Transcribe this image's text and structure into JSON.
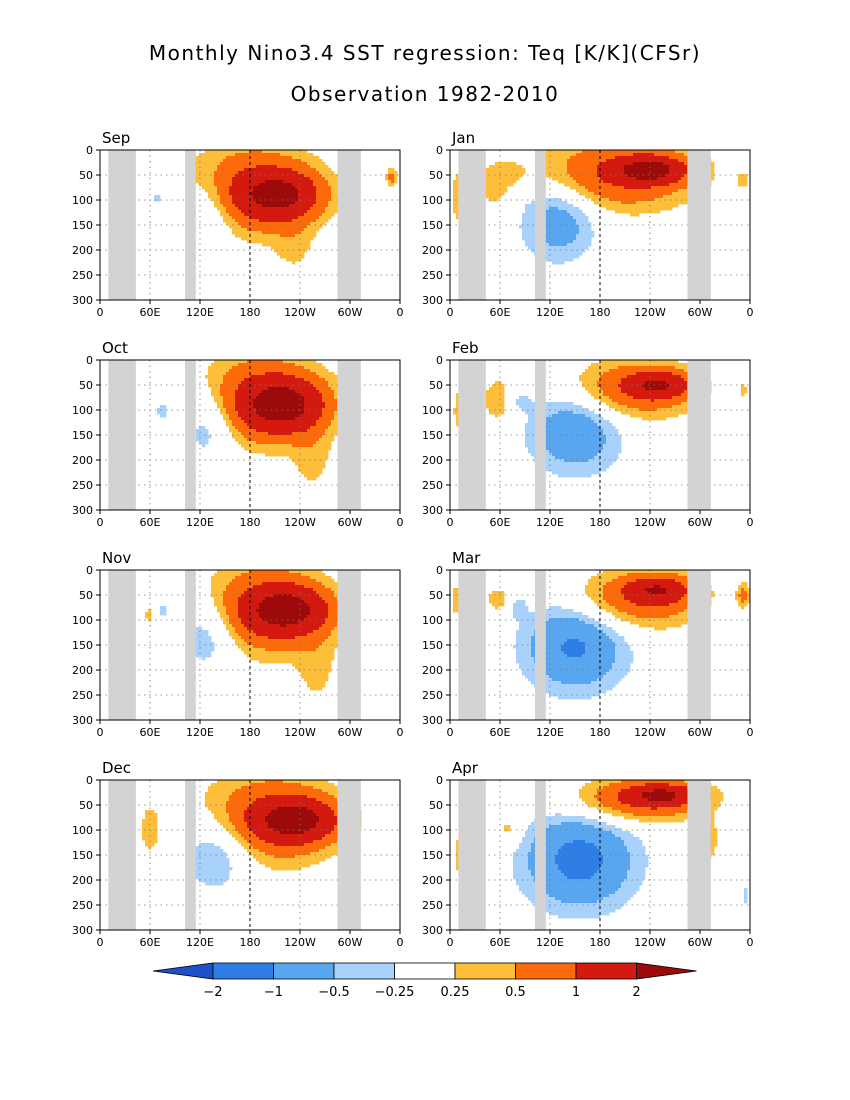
{
  "title_line1": "Monthly Nino3.4 SST regression: Teq [K/K](CFSr)",
  "title_line2": "Observation 1982-2010",
  "chart_data": {
    "type": "heatmap",
    "x_tick_labels": [
      "0",
      "60E",
      "120E",
      "180",
      "120W",
      "60W",
      "0"
    ],
    "x_ticks_deg": [
      0,
      60,
      120,
      180,
      240,
      300,
      360
    ],
    "xlim_deg": [
      0,
      360
    ],
    "y_tick_labels": [
      "0",
      "50",
      "100",
      "150",
      "200",
      "250",
      "300"
    ],
    "y_ticks": [
      0,
      50,
      100,
      150,
      200,
      250,
      300
    ],
    "ylim": [
      300,
      0
    ],
    "grid": true,
    "reference_line_deg": 180,
    "land_mask_bands_deg": [
      [
        10,
        43
      ],
      [
        102,
        115
      ],
      [
        285,
        313
      ]
    ],
    "contour_levels": [
      -2,
      -1,
      -0.5,
      -0.25,
      0.25,
      0.5,
      1,
      2
    ],
    "level_colors": [
      "#1e50c8",
      "#2f7ee6",
      "#59a6f0",
      "#a8d2fb",
      "#ffffff",
      "#fdbf3a",
      "#fd6a0a",
      "#d4190e",
      "#9c0a0a"
    ],
    "colorbar_labels": [
      "-2",
      "-1",
      "-0.5",
      "-0.25",
      "0.25",
      "0.5",
      "1",
      "2"
    ],
    "panels": [
      {
        "month": "Sep",
        "features": [
          {
            "lon": 180,
            "depth": 80,
            "rlon": 80,
            "rdep": 90,
            "amp": 1.0
          },
          {
            "lon": 215,
            "depth": 90,
            "rlon": 45,
            "rdep": 45,
            "amp": 1.8
          },
          {
            "lon": 233,
            "depth": 195,
            "rlon": 25,
            "rdep": 65,
            "amp": 0.25
          },
          {
            "lon": 130,
            "depth": 120,
            "rlon": 32,
            "rdep": 75,
            "amp": -0.55
          },
          {
            "lon": 70,
            "depth": 95,
            "rlon": 15,
            "rdep": 25,
            "amp": -0.4
          },
          {
            "lon": 14,
            "depth": 150,
            "rlon": 6,
            "rdep": 50,
            "amp": 0.25
          },
          {
            "lon": 350,
            "depth": 55,
            "rlon": 7,
            "rdep": 20,
            "amp": 0.6
          }
        ]
      },
      {
        "month": "Jan",
        "features": [
          {
            "lon": 200,
            "depth": 50,
            "rlon": 95,
            "rdep": 70,
            "amp": 1.0
          },
          {
            "lon": 240,
            "depth": 40,
            "rlon": 40,
            "rdep": 25,
            "amp": 2.0
          },
          {
            "lon": 130,
            "depth": 140,
            "rlon": 45,
            "rdep": 80,
            "amp": -0.8
          },
          {
            "lon": 60,
            "depth": 70,
            "rlon": 25,
            "rdep": 45,
            "amp": 0.45
          },
          {
            "lon": 78,
            "depth": 90,
            "rlon": 16,
            "rdep": 25,
            "amp": -0.35
          },
          {
            "lon": 10,
            "depth": 95,
            "rlon": 10,
            "rdep": 60,
            "amp": 0.4
          },
          {
            "lon": 352,
            "depth": 60,
            "rlon": 8,
            "rdep": 20,
            "amp": 0.3
          }
        ]
      },
      {
        "month": "Oct",
        "features": [
          {
            "lon": 185,
            "depth": 80,
            "rlon": 80,
            "rdep": 90,
            "amp": 1.0
          },
          {
            "lon": 220,
            "depth": 90,
            "rlon": 45,
            "rdep": 50,
            "amp": 2.0
          },
          {
            "lon": 255,
            "depth": 200,
            "rlon": 25,
            "rdep": 80,
            "amp": 0.3
          },
          {
            "lon": 130,
            "depth": 120,
            "rlon": 35,
            "rdep": 80,
            "amp": -0.7
          },
          {
            "lon": 75,
            "depth": 100,
            "rlon": 14,
            "rdep": 30,
            "amp": -0.4
          },
          {
            "lon": 12,
            "depth": 100,
            "rlon": 6,
            "rdep": 30,
            "amp": 0.3
          }
        ]
      },
      {
        "month": "Feb",
        "features": [
          {
            "lon": 215,
            "depth": 60,
            "rlon": 80,
            "rdep": 60,
            "amp": 0.9
          },
          {
            "lon": 250,
            "depth": 50,
            "rlon": 35,
            "rdep": 25,
            "amp": 1.6
          },
          {
            "lon": 150,
            "depth": 140,
            "rlon": 55,
            "rdep": 85,
            "amp": -0.9
          },
          {
            "lon": 60,
            "depth": 80,
            "rlon": 22,
            "rdep": 45,
            "amp": 0.5
          },
          {
            "lon": 80,
            "depth": 80,
            "rlon": 18,
            "rdep": 25,
            "amp": -0.4
          },
          {
            "lon": 10,
            "depth": 100,
            "rlon": 8,
            "rdep": 60,
            "amp": 0.35
          },
          {
            "lon": 352,
            "depth": 60,
            "rlon": 6,
            "rdep": 20,
            "amp": 0.3
          }
        ]
      },
      {
        "month": "Nov",
        "features": [
          {
            "lon": 190,
            "depth": 80,
            "rlon": 80,
            "rdep": 90,
            "amp": 1.0
          },
          {
            "lon": 225,
            "depth": 80,
            "rlon": 45,
            "rdep": 45,
            "amp": 2.0
          },
          {
            "lon": 260,
            "depth": 200,
            "rlon": 25,
            "rdep": 80,
            "amp": 0.3
          },
          {
            "lon": 130,
            "depth": 120,
            "rlon": 38,
            "rdep": 80,
            "amp": -0.7
          },
          {
            "lon": 75,
            "depth": 80,
            "rlon": 14,
            "rdep": 30,
            "amp": -0.35
          },
          {
            "lon": 60,
            "depth": 90,
            "rlon": 8,
            "rdep": 25,
            "amp": 0.35
          },
          {
            "lon": 12,
            "depth": 100,
            "rlon": 6,
            "rdep": 30,
            "amp": 0.3
          }
        ]
      },
      {
        "month": "Mar",
        "features": [
          {
            "lon": 220,
            "depth": 60,
            "rlon": 80,
            "rdep": 60,
            "amp": 0.9
          },
          {
            "lon": 250,
            "depth": 40,
            "rlon": 35,
            "rdep": 25,
            "amp": 1.5
          },
          {
            "lon": 150,
            "depth": 150,
            "rlon": 60,
            "rdep": 90,
            "amp": -1.1
          },
          {
            "lon": 60,
            "depth": 60,
            "rlon": 20,
            "rdep": 30,
            "amp": 0.4
          },
          {
            "lon": 80,
            "depth": 70,
            "rlon": 12,
            "rdep": 25,
            "amp": -0.4
          },
          {
            "lon": 8,
            "depth": 60,
            "rlon": 8,
            "rdep": 35,
            "amp": 0.4
          },
          {
            "lon": 352,
            "depth": 50,
            "rlon": 8,
            "rdep": 25,
            "amp": 0.6
          }
        ]
      },
      {
        "month": "Dec",
        "features": [
          {
            "lon": 200,
            "depth": 80,
            "rlon": 85,
            "rdep": 90,
            "amp": 1.0
          },
          {
            "lon": 235,
            "depth": 80,
            "rlon": 45,
            "rdep": 40,
            "amp": 2.0
          },
          {
            "lon": 140,
            "depth": 140,
            "rlon": 45,
            "rdep": 80,
            "amp": -0.7
          },
          {
            "lon": 60,
            "depth": 100,
            "rlon": 12,
            "rdep": 50,
            "amp": 0.4
          },
          {
            "lon": 12,
            "depth": 100,
            "rlon": 6,
            "rdep": 30,
            "amp": 0.3
          }
        ]
      },
      {
        "month": "Apr",
        "features": [
          {
            "lon": 225,
            "depth": 40,
            "rlon": 80,
            "rdep": 45,
            "amp": 1.0
          },
          {
            "lon": 255,
            "depth": 30,
            "rlon": 40,
            "rdep": 20,
            "amp": 1.6
          },
          {
            "lon": 155,
            "depth": 160,
            "rlon": 65,
            "rdep": 95,
            "amp": -1.2
          },
          {
            "lon": 70,
            "depth": 100,
            "rlon": 15,
            "rdep": 30,
            "amp": 0.4
          },
          {
            "lon": 310,
            "depth": 120,
            "rlon": 10,
            "rdep": 40,
            "amp": 0.6
          },
          {
            "lon": 10,
            "depth": 150,
            "rlon": 8,
            "rdep": 80,
            "amp": 0.3
          },
          {
            "lon": 355,
            "depth": 230,
            "rlon": 6,
            "rdep": 40,
            "amp": -0.3
          }
        ]
      }
    ]
  }
}
